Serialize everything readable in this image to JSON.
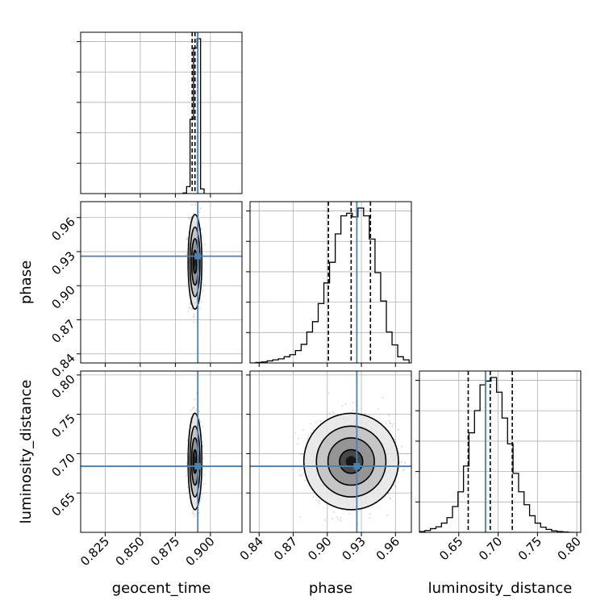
{
  "colors": {
    "truth": "#4682b4",
    "hist": "#000000",
    "grid": "#b0b0b0",
    "contour": "#000000",
    "scatter": "#000000"
  },
  "chart_data": {
    "type": "corner",
    "parameters": [
      "geocent_time",
      "phase",
      "luminosity_distance"
    ],
    "truths": {
      "geocent_time": 0.891,
      "phase": 0.926,
      "luminosity_distance": 0.684
    },
    "quantiles": {
      "geocent_time": [
        0.887,
        0.889,
        0.891
      ],
      "phase": [
        0.901,
        0.921,
        0.938
      ],
      "luminosity_distance": [
        0.662,
        0.69,
        0.718
      ]
    },
    "posterior_means": {
      "geocent_time": 0.889,
      "phase": 0.921,
      "luminosity_distance": 0.69
    },
    "posterior_sds": {
      "geocent_time": 0.002,
      "phase": 0.017,
      "luminosity_distance": 0.025
    },
    "axes": {
      "geocent_time": {
        "range": [
          0.8075,
          0.9225
        ],
        "ticks": [
          0.825,
          0.85,
          0.875,
          0.9
        ],
        "tick_labels": [
          "0.825",
          "0.850",
          "0.875",
          "0.900"
        ]
      },
      "phase": {
        "range": [
          0.832,
          0.974
        ],
        "ticks": [
          0.84,
          0.87,
          0.9,
          0.93,
          0.96
        ],
        "tick_labels": [
          "0.84",
          "0.87",
          "0.90",
          "0.93",
          "0.96"
        ]
      },
      "luminosity_distance": {
        "range": [
          0.6,
          0.805
        ],
        "ticks": [
          0.65,
          0.7,
          0.75,
          0.8
        ],
        "tick_labels": [
          "0.65",
          "0.70",
          "0.75",
          "0.80"
        ]
      }
    },
    "histograms": {
      "geocent_time": {
        "edges": [
          0.8805,
          0.883,
          0.8855,
          0.888,
          0.8905,
          0.893,
          0.8955
        ],
        "counts": [
          4,
          45,
          480,
          940,
          1000,
          30
        ]
      },
      "phase": {
        "edges": [
          0.832,
          0.837,
          0.842,
          0.847,
          0.852,
          0.857,
          0.862,
          0.867,
          0.872,
          0.877,
          0.882,
          0.887,
          0.892,
          0.897,
          0.902,
          0.907,
          0.912,
          0.917,
          0.922,
          0.927,
          0.932,
          0.937,
          0.942,
          0.947,
          0.952,
          0.957,
          0.962,
          0.967,
          0.972
        ],
        "counts": [
          0,
          1,
          2,
          4,
          6,
          8,
          12,
          16,
          24,
          36,
          60,
          80,
          115,
          155,
          195,
          250,
          285,
          290,
          283,
          300,
          285,
          240,
          175,
          120,
          60,
          35,
          12,
          6
        ]
      },
      "luminosity_distance": {
        "edges": [
          0.6,
          0.607,
          0.614,
          0.621,
          0.628,
          0.635,
          0.642,
          0.649,
          0.656,
          0.663,
          0.67,
          0.677,
          0.684,
          0.691,
          0.698,
          0.705,
          0.712,
          0.719,
          0.726,
          0.733,
          0.74,
          0.747,
          0.754,
          0.761,
          0.768,
          0.775,
          0.782,
          0.789,
          0.796
        ],
        "counts": [
          2,
          5,
          10,
          15,
          25,
          40,
          70,
          110,
          180,
          270,
          330,
          400,
          410,
          420,
          380,
          310,
          240,
          160,
          110,
          75,
          45,
          25,
          14,
          8,
          4,
          2,
          1,
          0
        ]
      }
    },
    "grid": true
  }
}
